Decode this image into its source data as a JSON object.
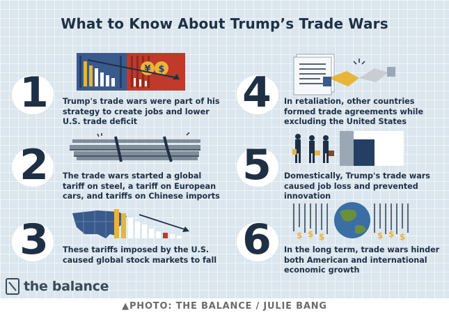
{
  "title": "What to Know About Trump’s Trade Wars",
  "items": [
    {
      "number": "1",
      "caption_lines": [
        "Trump's trade wars were part of his",
        "strategy to create jobs and lower",
        "U.S. trade deficit"
      ],
      "icon": "shipping-container-currency-icon"
    },
    {
      "number": "2",
      "caption_lines": [
        "The trade wars started a global",
        "tariff on steel, a tariff on European",
        "cars, and tariffs on Chinese imports"
      ],
      "icon": "steel-beams-icon"
    },
    {
      "number": "3",
      "caption_lines": [
        "These tariffs imposed by the U.S.",
        "caused global stock markets to fall"
      ],
      "icon": "us-map-falling-chart-icon"
    },
    {
      "number": "4",
      "caption_lines": [
        "In retaliation, other countries",
        "formed trade agreements while",
        "excluding the United States"
      ],
      "icon": "handshake-agreement-icon"
    },
    {
      "number": "5",
      "caption_lines": [
        "Domestically, Trump's trade wars",
        "caused job loss and prevented",
        "innovation"
      ],
      "icon": "workers-leaving-factory-icon"
    },
    {
      "number": "6",
      "caption_lines": [
        "In the long term, trade wars hinder",
        "both American and international",
        "economic growth"
      ],
      "icon": "globe-money-icon"
    }
  ],
  "brand": {
    "name": "the balance",
    "icon": "balance-logo-icon"
  },
  "credit": "▲PHOTO: THE BALANCE / JULIE BANG",
  "colors": {
    "background": "#dbe6ee",
    "text": "#1f3044",
    "accent_red": "#c0392b",
    "accent_gold": "#e7b53a",
    "accent_blue": "#3a5a8c"
  }
}
